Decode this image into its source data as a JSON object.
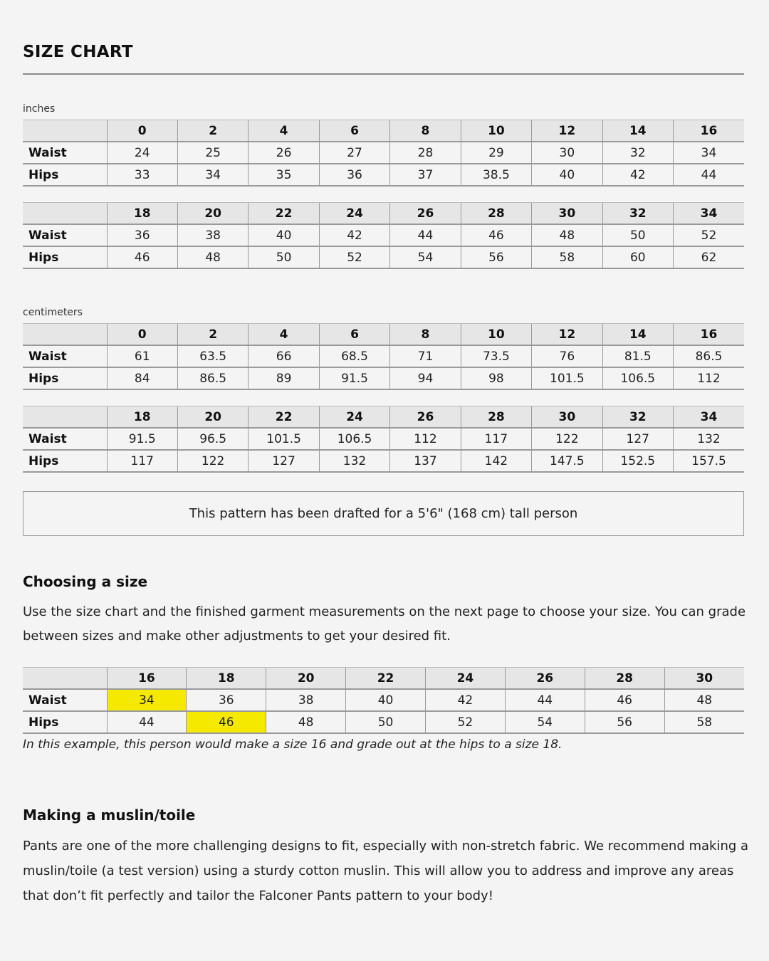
{
  "title": "SIZE CHART",
  "inches": {
    "label": "inches",
    "tables": [
      {
        "sizes": [
          "0",
          "2",
          "4",
          "6",
          "8",
          "10",
          "12",
          "14",
          "16"
        ],
        "rows": [
          {
            "label": "Waist",
            "values": [
              "24",
              "25",
              "26",
              "27",
              "28",
              "29",
              "30",
              "32",
              "34"
            ]
          },
          {
            "label": "Hips",
            "values": [
              "33",
              "34",
              "35",
              "36",
              "37",
              "38.5",
              "40",
              "42",
              "44"
            ]
          }
        ]
      },
      {
        "sizes": [
          "18",
          "20",
          "22",
          "24",
          "26",
          "28",
          "30",
          "32",
          "34"
        ],
        "rows": [
          {
            "label": "Waist",
            "values": [
              "36",
              "38",
              "40",
              "42",
              "44",
              "46",
              "48",
              "50",
              "52"
            ]
          },
          {
            "label": "Hips",
            "values": [
              "46",
              "48",
              "50",
              "52",
              "54",
              "56",
              "58",
              "60",
              "62"
            ]
          }
        ]
      }
    ]
  },
  "centimeters": {
    "label": "centimeters",
    "tables": [
      {
        "sizes": [
          "0",
          "2",
          "4",
          "6",
          "8",
          "10",
          "12",
          "14",
          "16"
        ],
        "rows": [
          {
            "label": "Waist",
            "values": [
              "61",
              "63.5",
              "66",
              "68.5",
              "71",
              "73.5",
              "76",
              "81.5",
              "86.5"
            ]
          },
          {
            "label": "Hips",
            "values": [
              "84",
              "86.5",
              "89",
              "91.5",
              "94",
              "98",
              "101.5",
              "106.5",
              "112"
            ]
          }
        ]
      },
      {
        "sizes": [
          "18",
          "20",
          "22",
          "24",
          "26",
          "28",
          "30",
          "32",
          "34"
        ],
        "rows": [
          {
            "label": "Waist",
            "values": [
              "91.5",
              "96.5",
              "101.5",
              "106.5",
              "112",
              "117",
              "122",
              "127",
              "132"
            ]
          },
          {
            "label": "Hips",
            "values": [
              "117",
              "122",
              "127",
              "132",
              "137",
              "142",
              "147.5",
              "152.5",
              "157.5"
            ]
          }
        ]
      }
    ]
  },
  "note": "This pattern has been drafted for a 5'6\" (168 cm) tall person",
  "choosing": {
    "heading": "Choosing a size",
    "body": "Use the size chart and the finished garment measurements on the next page to choose your size. You can grade between sizes and make other adjustments to get your desired fit.",
    "example": {
      "sizes": [
        "16",
        "18",
        "20",
        "22",
        "24",
        "26",
        "28",
        "30"
      ],
      "rows": [
        {
          "label": "Waist",
          "values": [
            "34",
            "36",
            "38",
            "40",
            "42",
            "44",
            "46",
            "48"
          ],
          "highlight": 0
        },
        {
          "label": "Hips",
          "values": [
            "44",
            "46",
            "48",
            "50",
            "52",
            "54",
            "56",
            "58"
          ],
          "highlight": 1
        }
      ],
      "highlight_color": "#f5e900"
    },
    "caption": "In this example, this person would make a size 16 and grade out at the hips to a size 18."
  },
  "muslin": {
    "heading": "Making a muslin/toile",
    "body": "Pants are one of the more challenging designs to fit, especially with non-stretch fabric. We recommend making a muslin/toile (a test version) using a sturdy cotton muslin. This will allow you to address and improve any areas that don’t fit perfectly and tailor the Falconer Pants pattern to your body!"
  }
}
